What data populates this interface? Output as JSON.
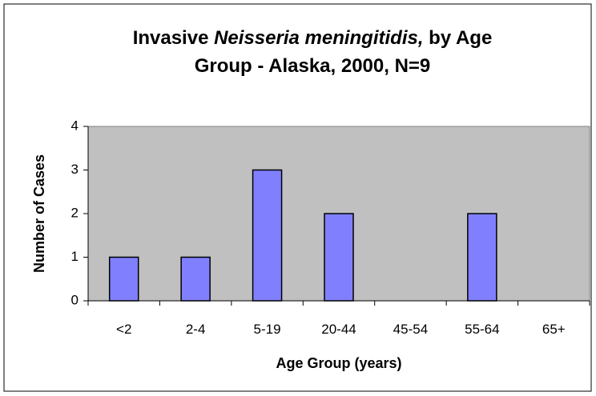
{
  "chart_data": {
    "type": "bar",
    "title": [
      [
        {
          "text": "Invasive "
        },
        {
          "text": "Neisseria meningitidis,",
          "italic": true
        },
        {
          "text": " by Age"
        }
      ],
      [
        {
          "text": "Group - Alaska, 2000, N=9"
        }
      ]
    ],
    "x_label": "Age Group (years)",
    "y_label": "Number of Cases",
    "categories": [
      "<2",
      "2-4",
      "5-19",
      "20-44",
      "45-54",
      "55-64",
      "65+"
    ],
    "values": [
      1,
      1,
      3,
      2,
      0,
      2,
      0
    ],
    "color": "#8080ff",
    "ylim": [
      0,
      4
    ],
    "yticks": [
      0,
      1,
      2,
      3,
      4
    ],
    "grid": false
  }
}
